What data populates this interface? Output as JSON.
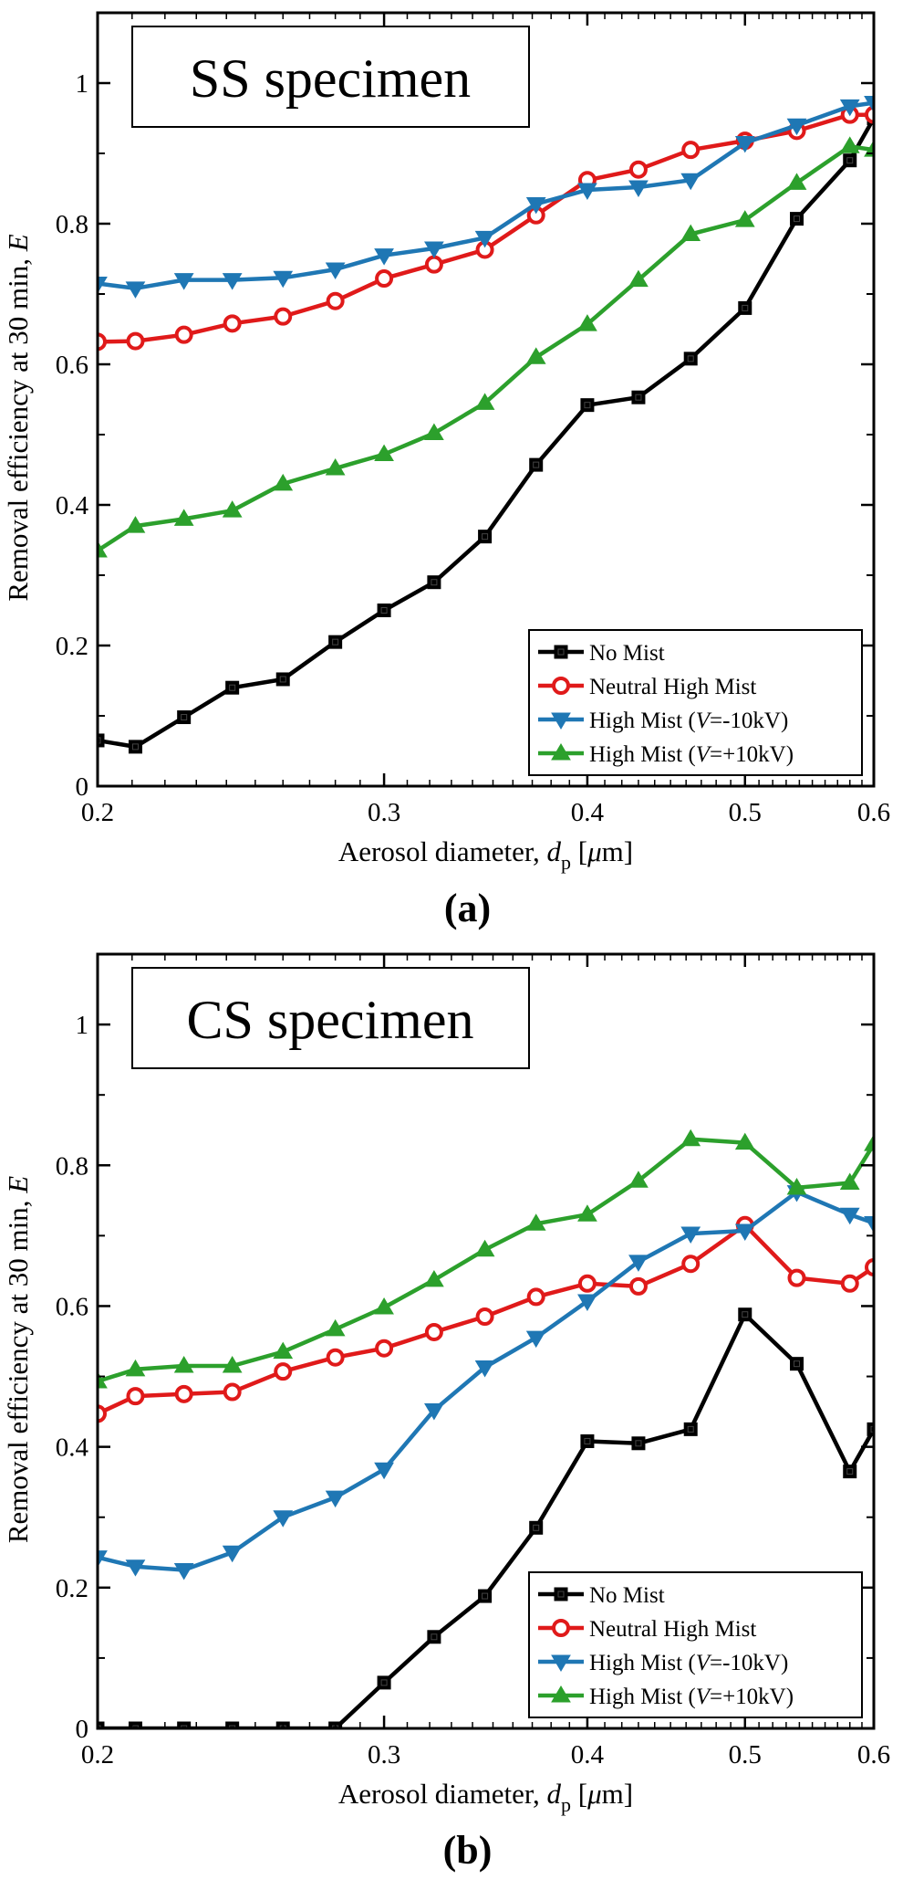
{
  "chart_data": [
    {
      "type": "line",
      "panel_label": "(a)",
      "title": "SS specimen",
      "xlabel": {
        "prefix": "Aerosol diameter, ",
        "var": "d",
        "sub": "p",
        "suffix": " [",
        "unit_mu": "μ",
        "unit_rest": "m]"
      },
      "ylabel": {
        "prefix": "Removal efficiency at 30 min, ",
        "var": "E"
      },
      "xscale": "log",
      "xlim": [
        0.2,
        0.6
      ],
      "ylim": [
        0,
        1.1
      ],
      "xticks": [
        0.2,
        0.3,
        0.4,
        0.5,
        0.6
      ],
      "xtick_labels": [
        "0.2",
        "0.3",
        "0.4",
        "0.5",
        "0.6"
      ],
      "yticks": [
        0,
        0.2,
        0.4,
        0.6,
        0.8,
        1.0
      ],
      "ytick_labels": [
        "0",
        "0.2",
        "0.4",
        "0.6",
        "0.8",
        "1"
      ],
      "grid": false,
      "legend_position": "lower-right",
      "x": [
        0.2,
        0.211,
        0.226,
        0.242,
        0.26,
        0.28,
        0.3,
        0.322,
        0.346,
        0.372,
        0.4,
        0.43,
        0.463,
        0.5,
        0.538,
        0.58,
        0.6
      ],
      "series": [
        {
          "name": "No Mist",
          "color": "#000000",
          "marker": "square",
          "values": [
            0.065,
            0.056,
            0.098,
            0.14,
            0.152,
            0.205,
            0.25,
            0.29,
            0.355,
            0.457,
            0.542,
            0.553,
            0.608,
            0.68,
            0.807,
            0.89,
            0.95
          ]
        },
        {
          "name": "Neutral High Mist",
          "color": "#e01a1a",
          "marker": "circle",
          "values": [
            0.632,
            0.633,
            0.642,
            0.658,
            0.668,
            0.69,
            0.722,
            0.742,
            0.763,
            0.812,
            0.862,
            0.877,
            0.905,
            0.918,
            0.932,
            0.955,
            0.955
          ]
        },
        {
          "name": "High Mist (V=-10kV)",
          "color": "#1f77b4",
          "marker": "triangle-down",
          "values": [
            0.715,
            0.708,
            0.72,
            0.72,
            0.723,
            0.735,
            0.755,
            0.765,
            0.78,
            0.828,
            0.848,
            0.852,
            0.862,
            0.915,
            0.94,
            0.967,
            0.972
          ]
        },
        {
          "name": "High Mist (V=+10kV)",
          "color": "#2ca02c",
          "marker": "triangle-up",
          "values": [
            0.335,
            0.37,
            0.38,
            0.392,
            0.43,
            0.452,
            0.472,
            0.502,
            0.545,
            0.61,
            0.657,
            0.72,
            0.785,
            0.805,
            0.858,
            0.91,
            0.905
          ]
        }
      ]
    },
    {
      "type": "line",
      "panel_label": "(b)",
      "title": "CS specimen",
      "xlabel": {
        "prefix": "Aerosol diameter, ",
        "var": "d",
        "sub": "p",
        "suffix": " [",
        "unit_mu": "μ",
        "unit_rest": "m]"
      },
      "ylabel": {
        "prefix": "Removal efficiency at 30 min, ",
        "var": "E"
      },
      "xscale": "log",
      "xlim": [
        0.2,
        0.6
      ],
      "ylim": [
        0,
        1.1
      ],
      "xticks": [
        0.2,
        0.3,
        0.4,
        0.5,
        0.6
      ],
      "xtick_labels": [
        "0.2",
        "0.3",
        "0.4",
        "0.5",
        "0.6"
      ],
      "yticks": [
        0,
        0.2,
        0.4,
        0.6,
        0.8,
        1.0
      ],
      "ytick_labels": [
        "0",
        "0.2",
        "0.4",
        "0.6",
        "0.8",
        "1"
      ],
      "grid": false,
      "legend_position": "lower-right",
      "x": [
        0.2,
        0.211,
        0.226,
        0.242,
        0.26,
        0.28,
        0.3,
        0.322,
        0.346,
        0.372,
        0.4,
        0.43,
        0.463,
        0.5,
        0.538,
        0.58,
        0.6
      ],
      "series": [
        {
          "name": "No Mist",
          "color": "#000000",
          "marker": "square",
          "values": [
            0.0,
            0.0,
            0.0,
            0.0,
            0.0,
            0.0,
            0.065,
            0.13,
            0.188,
            0.285,
            0.408,
            0.405,
            0.425,
            0.588,
            0.518,
            0.365,
            0.425
          ]
        },
        {
          "name": "Neutral High Mist",
          "color": "#e01a1a",
          "marker": "circle",
          "values": [
            0.447,
            0.472,
            0.475,
            0.478,
            0.507,
            0.527,
            0.54,
            0.563,
            0.585,
            0.613,
            0.632,
            0.628,
            0.66,
            0.715,
            0.64,
            0.632,
            0.655
          ]
        },
        {
          "name": "High Mist (V=-10kV)",
          "color": "#1f77b4",
          "marker": "triangle-down",
          "values": [
            0.243,
            0.23,
            0.225,
            0.25,
            0.3,
            0.328,
            0.368,
            0.452,
            0.513,
            0.555,
            0.607,
            0.663,
            0.703,
            0.707,
            0.762,
            0.73,
            0.718
          ]
        },
        {
          "name": "High Mist (V=+10kV)",
          "color": "#2ca02c",
          "marker": "triangle-up",
          "values": [
            0.493,
            0.51,
            0.515,
            0.515,
            0.535,
            0.567,
            0.598,
            0.637,
            0.68,
            0.717,
            0.73,
            0.778,
            0.837,
            0.832,
            0.768,
            0.775,
            0.83
          ]
        }
      ]
    }
  ]
}
